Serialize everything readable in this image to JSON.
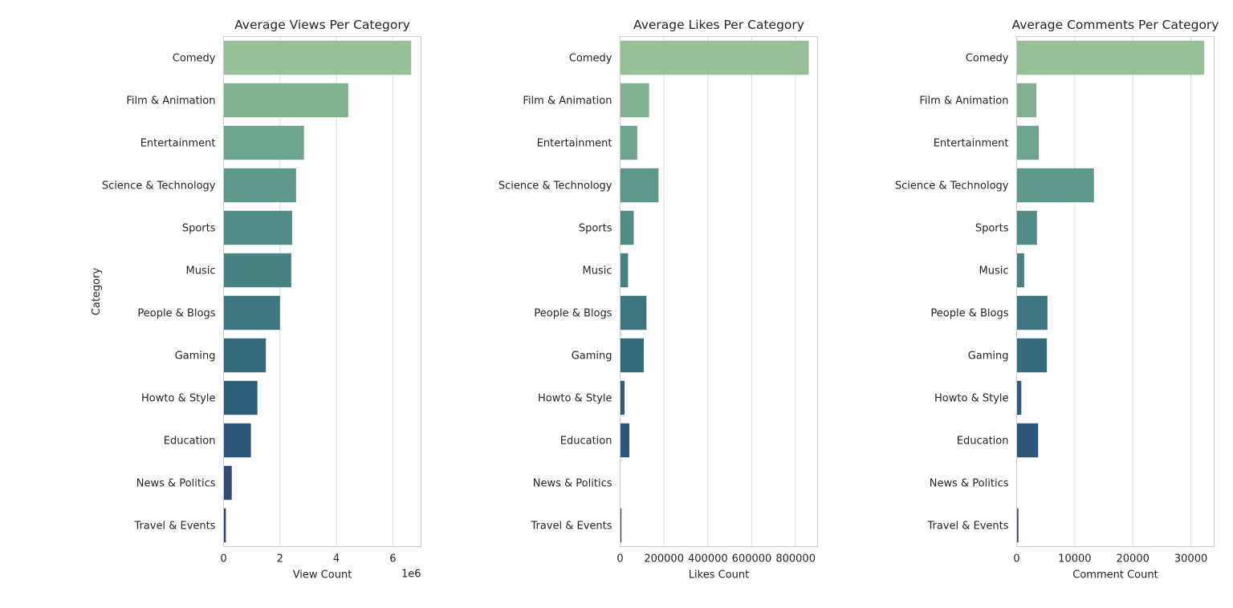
{
  "chart_data": [
    {
      "type": "bar",
      "orientation": "horizontal",
      "title": "Average Views Per Category",
      "xlabel": "View Count",
      "ylabel": "Category",
      "x_offset_label": "1e6",
      "xlim": [
        0,
        7000000
      ],
      "xticks": [
        0,
        2000000,
        4000000,
        6000000
      ],
      "xtick_labels": [
        "0",
        "2",
        "4",
        "6"
      ],
      "grid": "vertical",
      "categories": [
        "Comedy",
        "Film & Animation",
        "Entertainment",
        "Science & Technology",
        "Sports",
        "Music",
        "People & Blogs",
        "Gaming",
        "Howto & Style",
        "Education",
        "News & Politics",
        "Travel & Events"
      ],
      "values": [
        6650000,
        4420000,
        2850000,
        2570000,
        2430000,
        2400000,
        2000000,
        1500000,
        1200000,
        970000,
        290000,
        80000
      ]
    },
    {
      "type": "bar",
      "orientation": "horizontal",
      "title": "Average Likes Per Category",
      "xlabel": "Likes Count",
      "ylabel": "",
      "x_offset_label": "",
      "xlim": [
        0,
        900000
      ],
      "xticks": [
        0,
        200000,
        400000,
        600000,
        800000
      ],
      "xtick_labels": [
        "0",
        "200000",
        "400000",
        "600000",
        "800000"
      ],
      "grid": "vertical",
      "categories": [
        "Comedy",
        "Film & Animation",
        "Entertainment",
        "Science & Technology",
        "Sports",
        "Music",
        "People & Blogs",
        "Gaming",
        "Howto & Style",
        "Education",
        "News & Politics",
        "Travel & Events"
      ],
      "values": [
        860000,
        132000,
        78000,
        175000,
        62000,
        36000,
        120000,
        108000,
        20000,
        42000,
        0,
        6000
      ]
    },
    {
      "type": "bar",
      "orientation": "horizontal",
      "title": "Average Comments Per Category",
      "xlabel": "Comment Count",
      "ylabel": "",
      "x_offset_label": "",
      "xlim": [
        0,
        34000
      ],
      "xticks": [
        0,
        10000,
        20000,
        30000
      ],
      "xtick_labels": [
        "0",
        "10000",
        "20000",
        "30000"
      ],
      "grid": "vertical",
      "categories": [
        "Comedy",
        "Film & Animation",
        "Entertainment",
        "Science & Technology",
        "Sports",
        "Music",
        "People & Blogs",
        "Gaming",
        "Howto & Style",
        "Education",
        "News & Politics",
        "Travel & Events"
      ],
      "values": [
        32300,
        3400,
        3800,
        13300,
        3500,
        1300,
        5300,
        5200,
        800,
        3700,
        0,
        300
      ]
    }
  ],
  "palette": [
    "#97bf98",
    "#82b092",
    "#6ea58e",
    "#5d988a",
    "#518d86",
    "#468282",
    "#3b767e",
    "#336b7b",
    "#2d6078",
    "#2d5677",
    "#314a72",
    "#35406f"
  ],
  "colors": {
    "grid": "#dedede",
    "frame": "#cccccc",
    "text": "#262626"
  }
}
